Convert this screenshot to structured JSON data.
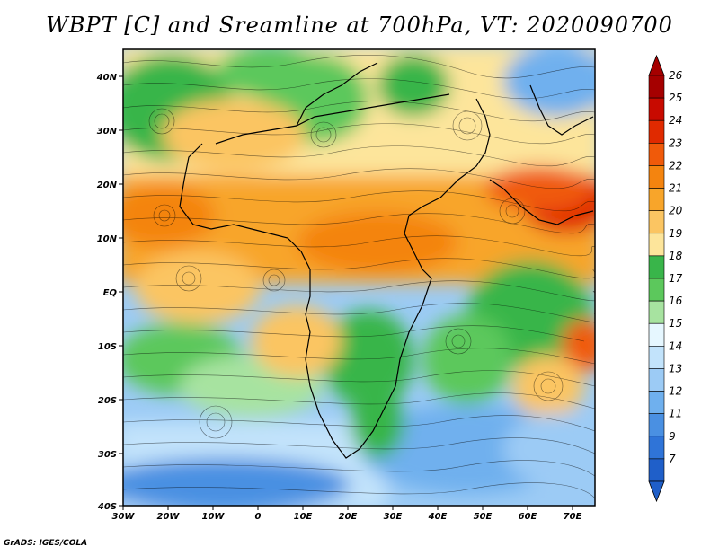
{
  "title": "WBPT [C] and Sreamline at 700hPa, VT: 2020090700",
  "footer": "GrADS: IGES/COLA",
  "map": {
    "lon_labels": [
      "30W",
      "20W",
      "10W",
      "0",
      "10E",
      "20E",
      "30E",
      "40E",
      "50E",
      "60E",
      "70E"
    ],
    "lat_labels": [
      "40N",
      "30N",
      "20N",
      "10N",
      "EQ",
      "10S",
      "20S",
      "30S",
      "40S"
    ]
  },
  "colorbar": {
    "levels": [
      "26",
      "25",
      "24",
      "23",
      "22",
      "21",
      "20",
      "19",
      "18",
      "17",
      "16",
      "15",
      "14",
      "13",
      "12",
      "11",
      "9",
      "7"
    ],
    "colors": [
      "#a50000",
      "#c80a00",
      "#e02a00",
      "#f05a0a",
      "#f4840f",
      "#f8a52a",
      "#fbc562",
      "#fde59b",
      "#39b54a",
      "#5cc85c",
      "#a7e3a0",
      "#e6f7ff",
      "#c2e3fb",
      "#9ccbf5",
      "#6fb0ee",
      "#4a90e2",
      "#2f74d8",
      "#1f5fc9"
    ]
  }
}
